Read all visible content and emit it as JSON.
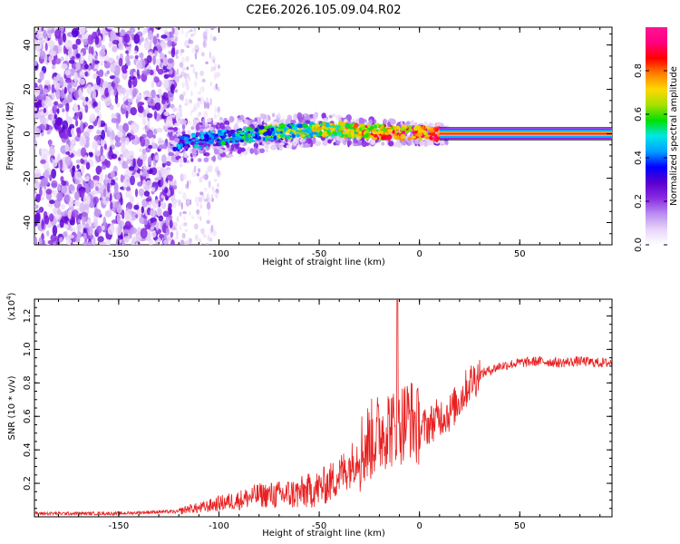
{
  "title": "C2E6.2026.105.09.04.R02",
  "chart_data": [
    {
      "type": "heatmap",
      "title": "C2E6.2026.105.09.04.R02",
      "xlabel": "Height of straight line (km)",
      "ylabel": "Frequency (Hz)",
      "xlim": [
        -192,
        96
      ],
      "ylim": [
        -50,
        48
      ],
      "x_ticks": [
        -150,
        -100,
        -50,
        0,
        50
      ],
      "y_ticks": [
        -40,
        -20,
        0,
        20,
        40
      ],
      "colorbar": {
        "label": "Normalized spectral amplitude",
        "range": [
          0,
          1
        ],
        "ticks": [
          0.0,
          0.2,
          0.4,
          0.6,
          0.8
        ],
        "tick_labels": [
          "0.0",
          "0.2",
          "0.4",
          "0.6",
          "0.8"
        ],
        "colormap": [
          "#ffffff",
          "#e8d4f8",
          "#b98cf0",
          "#8a2be2",
          "#5a00d0",
          "#0000ff",
          "#00a0ff",
          "#00e6e6",
          "#00e000",
          "#a8e000",
          "#ffd800",
          "#ff8000",
          "#ff0000",
          "#ff0080",
          "#ff1493"
        ]
      },
      "signal_trace": {
        "x": [
          -122,
          -110,
          -100,
          -90,
          -80,
          -70,
          -60,
          -50,
          -40,
          -30,
          -20,
          -10,
          0,
          10,
          20,
          40,
          60,
          80,
          96
        ],
        "y": [
          -4,
          -3,
          -2,
          -1,
          0,
          1,
          1,
          2,
          2,
          1,
          1,
          0,
          0,
          0,
          0,
          0,
          0,
          0,
          0
        ]
      }
    },
    {
      "type": "line",
      "xlabel": "Height of straight line (km)",
      "ylabel": "SNR (10 * v/v)",
      "yscale_label": "(x10",
      "yscale_exp": "4",
      "yscale_suffix": ")",
      "xlim": [
        -192,
        96
      ],
      "ylim": [
        0,
        1.3
      ],
      "x_ticks": [
        -150,
        -100,
        -50,
        0,
        50
      ],
      "y_ticks": [
        0.2,
        0.4,
        0.6,
        0.8,
        1.0,
        1.2
      ],
      "y_tick_labels": [
        "0.2",
        "0.4",
        "0.6",
        "0.8",
        "1.0",
        "1.2"
      ],
      "series": [
        {
          "name": "SNR",
          "color": "#e82020",
          "x": [
            -192,
            -170,
            -150,
            -130,
            -120,
            -115,
            -110,
            -100,
            -90,
            -80,
            -70,
            -60,
            -50,
            -45,
            -40,
            -35,
            -30,
            -25,
            -20,
            -15,
            -12,
            -10,
            -5,
            0,
            5,
            10,
            15,
            20,
            25,
            30,
            40,
            50,
            60,
            70,
            80,
            90,
            96
          ],
          "y": [
            0.02,
            0.02,
            0.02,
            0.03,
            0.03,
            0.05,
            0.05,
            0.08,
            0.1,
            0.13,
            0.13,
            0.14,
            0.17,
            0.2,
            0.25,
            0.3,
            0.38,
            0.45,
            0.5,
            0.55,
            0.5,
            0.55,
            0.6,
            0.52,
            0.55,
            0.6,
            0.62,
            0.7,
            0.8,
            0.85,
            0.9,
            0.92,
            0.93,
            0.92,
            0.93,
            0.92,
            0.92
          ]
        }
      ]
    }
  ]
}
